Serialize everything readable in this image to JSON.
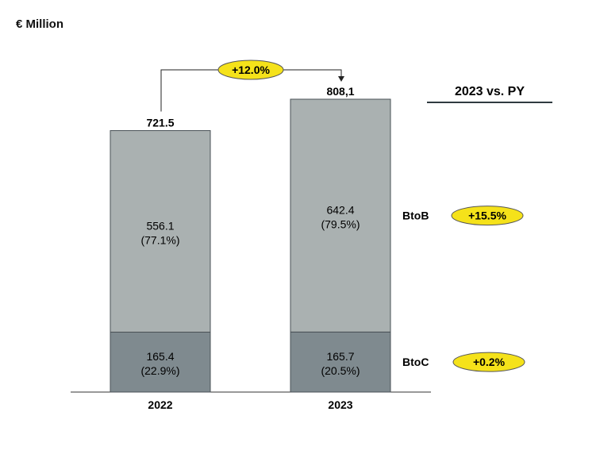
{
  "unit_label": "€ Million",
  "comparison_header": "2023 vs. PY",
  "chart_data": {
    "type": "bar",
    "stacked": true,
    "categories": [
      "2022",
      "2023"
    ],
    "totals": [
      "721.5",
      "808,1"
    ],
    "series": [
      {
        "name": "BtoC",
        "values": [
          165.4,
          165.7
        ],
        "labels": [
          "165.4",
          "165.7"
        ],
        "shares": [
          "(22.9%)",
          "(20.5%)"
        ],
        "color": "#7f8a8f"
      },
      {
        "name": "BtoB",
        "values": [
          556.1,
          642.4
        ],
        "labels": [
          "556.1",
          "642.4"
        ],
        "shares": [
          "(77.1%)",
          "(79.5%)"
        ],
        "color": "#aab1b1"
      }
    ],
    "total_growth": "+12.0%",
    "series_growth": {
      "BtoB": "+15.5%",
      "BtoC": "+0.2%"
    },
    "highlight_color": "#f5e21a",
    "ylim": [
      0,
      900
    ],
    "grid": false
  }
}
